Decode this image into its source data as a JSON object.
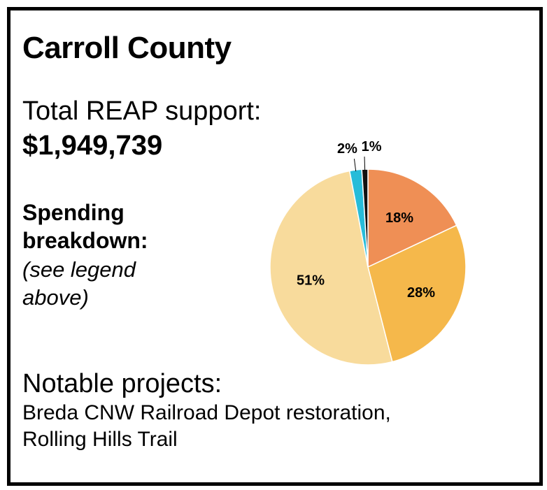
{
  "county": "Carroll County",
  "total_label": "Total REAP support:",
  "total_value": "$1,949,739",
  "spending_heading": "Spending breakdown:",
  "spending_note": "(see legend above)",
  "projects_heading": "Notable projects:",
  "projects_text": "Breda CNW Railroad Depot restoration, Rolling Hills Trail",
  "chart_data": {
    "type": "pie",
    "slices": [
      {
        "label": "18%",
        "value": 18,
        "color": "#ef8f55"
      },
      {
        "label": "28%",
        "value": 28,
        "color": "#f5b84b"
      },
      {
        "label": "51%",
        "value": 51,
        "color": "#f8db9c"
      },
      {
        "label": "2%",
        "value": 2,
        "color": "#27bcd9"
      },
      {
        "label": "1%",
        "value": 1,
        "color": "#111111"
      }
    ]
  }
}
